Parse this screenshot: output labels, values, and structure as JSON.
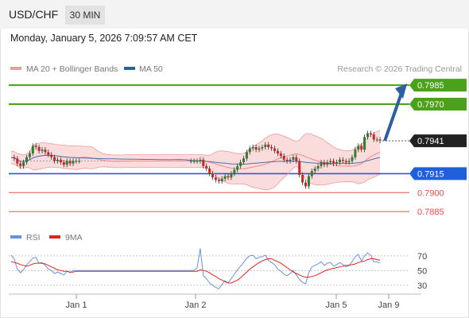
{
  "header": {
    "symbol": "USD/CHF",
    "timeframe": "30 MIN",
    "datetime": "Monday, January 5, 2026 7:09:57 AM CET",
    "copyright": "Research © 2026 Trading Central"
  },
  "colors": {
    "resistance": "#4aa21a",
    "support": "#1f5fd9",
    "minor_support": "#ef4b4b",
    "current": "#222222",
    "arrow": "#2d5fa3",
    "candle_up": "#2e7d32",
    "candle_down": "#c62828",
    "bollinger_fill": "#fbdcdc",
    "bollinger_line": "#f29a9a",
    "ma20": "#ef8a8a",
    "ma50": "#4b6fa8",
    "rsi": "#6a8fe3",
    "rsi_ma": "#e62020"
  },
  "chart_data": [
    {
      "type": "candlestick",
      "title": "",
      "legend": [
        {
          "name": "MA 20 + Bollinger Bands",
          "color": "#f29a9a"
        },
        {
          "name": "MA 50",
          "color": "#2d5fa3"
        }
      ],
      "x_ticks": [
        "Jan 1",
        "Jan 2",
        "Jan 5",
        "Jan 9"
      ],
      "y_range": [
        0.7875,
        0.7992
      ],
      "levels": [
        {
          "value": "0.7985",
          "type": "resistance"
        },
        {
          "value": "0.7970",
          "type": "resistance"
        },
        {
          "value": "0.7941",
          "type": "current"
        },
        {
          "value": "0.7915",
          "type": "support"
        },
        {
          "value": "0.7900",
          "type": "minor_support"
        },
        {
          "value": "0.7885",
          "type": "minor_support"
        }
      ],
      "projection": {
        "from": 0.7941,
        "to": 0.7985,
        "direction": "up"
      },
      "price": [
        0.7928,
        0.7927,
        0.7923,
        0.7921,
        0.7924,
        0.7928,
        0.7931,
        0.7937,
        0.7936,
        0.7933,
        0.7934,
        0.7932,
        0.793,
        0.7928,
        0.7925,
        0.7926,
        0.7924,
        0.7922,
        0.7925,
        0.7923,
        0.7925,
        0.7925,
        0.7925,
        0.7925,
        0.7925,
        0.7925,
        0.7925,
        0.7925,
        0.7925,
        0.7925,
        0.7925,
        0.7925,
        0.7925,
        0.7925,
        0.7925,
        0.7925,
        0.7925,
        0.7925,
        0.7925,
        0.7925,
        0.7925,
        0.7925,
        0.7925,
        0.7925,
        0.7925,
        0.7925,
        0.7925,
        0.7925,
        0.7925,
        0.7925,
        0.7925,
        0.7925,
        0.7925,
        0.7925,
        0.7925,
        0.7925,
        0.7925,
        0.7925,
        0.7925,
        0.7925,
        0.7925,
        0.7926,
        0.7921,
        0.7919,
        0.7915,
        0.7912,
        0.791,
        0.7909,
        0.7911,
        0.7913,
        0.7912,
        0.7915,
        0.7918,
        0.7921,
        0.7924,
        0.7927,
        0.7932,
        0.7935,
        0.7936,
        0.7934,
        0.7935,
        0.7936,
        0.7938,
        0.7936,
        0.7935,
        0.7933,
        0.7931,
        0.7929,
        0.7926,
        0.7925,
        0.7926,
        0.7928,
        0.7925,
        0.7914,
        0.7908,
        0.7905,
        0.7913,
        0.7917,
        0.7919,
        0.7921,
        0.7924,
        0.7922,
        0.7924,
        0.7925,
        0.7923,
        0.7924,
        0.7926,
        0.7925,
        0.7924,
        0.7925,
        0.7928,
        0.7934,
        0.7937,
        0.7934,
        0.7944,
        0.7947,
        0.7946,
        0.7942,
        0.7942,
        0.7941
      ]
    },
    {
      "type": "line",
      "title": "",
      "series": [
        {
          "name": "RSI",
          "values": [
            71,
            66,
            52,
            47,
            51,
            58,
            62,
            67,
            68,
            60,
            61,
            57,
            52,
            50,
            46,
            48,
            46,
            44,
            49,
            47,
            50,
            50,
            50,
            50,
            50,
            50,
            50,
            50,
            50,
            50,
            50,
            50,
            50,
            50,
            50,
            50,
            50,
            50,
            50,
            50,
            50,
            50,
            50,
            50,
            50,
            50,
            50,
            50,
            50,
            50,
            50,
            50,
            50,
            50,
            50,
            50,
            50,
            50,
            50,
            50,
            54,
            80,
            43,
            39,
            33,
            30,
            27,
            25,
            31,
            36,
            33,
            39,
            45,
            51,
            56,
            61,
            67,
            70,
            71,
            66,
            68,
            69,
            71,
            64,
            61,
            58,
            52,
            49,
            45,
            43,
            46,
            50,
            44,
            38,
            34,
            32,
            47,
            55,
            57,
            59,
            62,
            57,
            60,
            61,
            56,
            58,
            61,
            58,
            55,
            57,
            62,
            69,
            72,
            63,
            70,
            74,
            71,
            62,
            62,
            60
          ]
        },
        {
          "name": "9MA",
          "values": [
            62,
            61,
            60,
            58,
            57,
            56,
            57,
            59,
            60,
            60,
            60,
            59,
            57,
            55,
            53,
            51,
            50,
            49,
            49,
            48,
            48,
            49,
            49,
            49,
            49,
            49,
            49,
            49,
            49,
            49,
            49,
            49,
            49,
            49,
            49,
            49,
            49,
            49,
            49,
            49,
            49,
            49,
            49,
            49,
            49,
            49,
            49,
            49,
            49,
            49,
            49,
            49,
            49,
            49,
            49,
            49,
            49,
            49,
            49,
            49,
            49,
            51,
            50,
            49,
            47,
            44,
            42,
            39,
            37,
            35,
            33,
            33,
            35,
            37,
            40,
            44,
            48,
            52,
            55,
            58,
            61,
            63,
            65,
            66,
            66,
            64,
            62,
            60,
            57,
            54,
            51,
            48,
            46,
            44,
            42,
            41,
            41,
            42,
            43,
            45,
            47,
            49,
            51,
            52,
            53,
            54,
            55,
            56,
            57,
            57,
            58,
            59,
            61,
            62,
            63,
            65,
            66,
            66,
            65,
            64
          ]
        }
      ],
      "legend": [
        "RSI",
        "9MA"
      ],
      "y_ticks": [
        "70",
        "50",
        "30"
      ],
      "y_range": [
        20,
        85
      ]
    }
  ]
}
